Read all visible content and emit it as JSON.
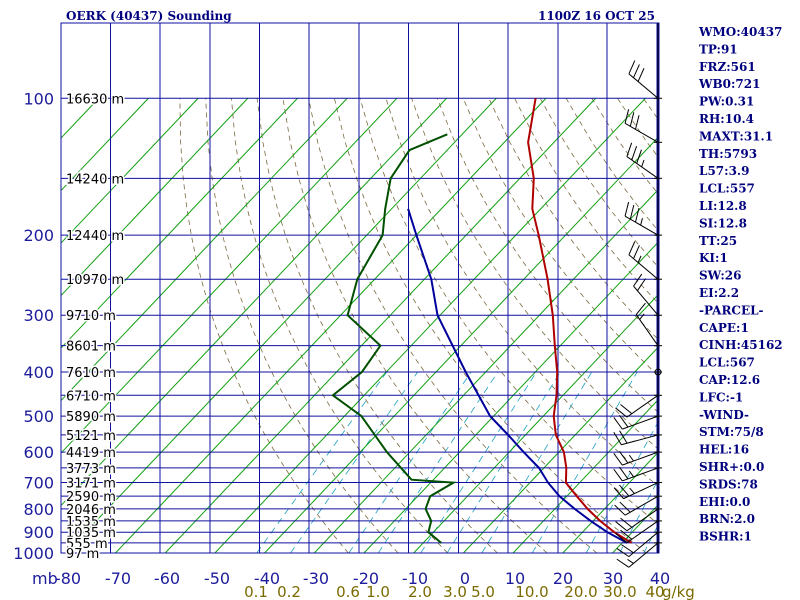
{
  "header": {
    "station": "OERK (40437) Sounding",
    "time": "1100Z 16 OCT 25"
  },
  "axes": {
    "unit_mb": "mb",
    "mixing_ratio_unit": "g/kg"
  },
  "chart_data": {
    "type": "line",
    "title": "OERK (40437) Sounding",
    "pressure_levels": [
      100,
      200,
      300,
      400,
      500,
      600,
      700,
      800,
      900,
      1000
    ],
    "temperature_ticks": [
      -80,
      -70,
      -60,
      -50,
      -40,
      -30,
      -20,
      -10,
      0,
      10,
      20,
      30,
      40
    ],
    "temperature_tick_labels": [
      "-80",
      "-70",
      "-60",
      "-50",
      "-40",
      "-30",
      "-20",
      "-10",
      "0",
      "10",
      "20",
      "30",
      "40"
    ],
    "height_labels": [
      {
        "p": 100,
        "text": "16630 m"
      },
      {
        "p": 150,
        "text": "14240 m"
      },
      {
        "p": 200,
        "text": "12440 m"
      },
      {
        "p": 250,
        "text": "10970 m"
      },
      {
        "p": 300,
        "text": "9710 m"
      },
      {
        "p": 350,
        "text": "8601 m"
      },
      {
        "p": 400,
        "text": "7610 m"
      },
      {
        "p": 450,
        "text": "6710 m"
      },
      {
        "p": 500,
        "text": "5890 m"
      },
      {
        "p": 550,
        "text": "5121 m"
      },
      {
        "p": 600,
        "text": "4419 m"
      },
      {
        "p": 650,
        "text": "3773 m"
      },
      {
        "p": 700,
        "text": "3171 m"
      },
      {
        "p": 750,
        "text": "2590 m"
      },
      {
        "p": 800,
        "text": "2046 m"
      },
      {
        "p": 850,
        "text": "1535 m"
      },
      {
        "p": 900,
        "text": "1035 m"
      },
      {
        "p": 950,
        "text": "555 m"
      },
      {
        "p": 1000,
        "text": "97 m"
      }
    ],
    "mixing_ratio_labels": [
      "0.1",
      "0.2",
      "0.6",
      "1.0",
      "2.0",
      "3.0",
      "5.0",
      "10.0",
      "20.0",
      "30.0",
      "40"
    ],
    "series": [
      {
        "key": "temperature",
        "color": "#b00000",
        "points": [
          {
            "p": 950,
            "t": 31.9
          },
          {
            "p": 900,
            "t": 26.4
          },
          {
            "p": 850,
            "t": 21.4
          },
          {
            "p": 800,
            "t": 16.6
          },
          {
            "p": 750,
            "t": 12.0
          },
          {
            "p": 700,
            "t": 7.2
          },
          {
            "p": 650,
            "t": 4.5
          },
          {
            "p": 600,
            "t": 1.0
          },
          {
            "p": 550,
            "t": -3.9
          },
          {
            "p": 500,
            "t": -7.9
          },
          {
            "p": 450,
            "t": -11.3
          },
          {
            "p": 400,
            "t": -15.6
          },
          {
            "p": 350,
            "t": -21.1
          },
          {
            "p": 300,
            "t": -27.3
          },
          {
            "p": 250,
            "t": -35.2
          },
          {
            "p": 200,
            "t": -45.4
          },
          {
            "p": 175,
            "t": -51.7
          },
          {
            "p": 150,
            "t": -57.2
          },
          {
            "p": 125,
            "t": -65.2
          },
          {
            "p": 100,
            "t": -72.1
          }
        ]
      },
      {
        "key": "dewpoint",
        "color": "#005000",
        "points": [
          {
            "p": 950,
            "t": -6.4
          },
          {
            "p": 900,
            "t": -11.0
          },
          {
            "p": 850,
            "t": -12.6
          },
          {
            "p": 800,
            "t": -16.0
          },
          {
            "p": 750,
            "t": -17.5
          },
          {
            "p": 700,
            "t": -15.4
          },
          {
            "p": 690,
            "t": -24.4
          },
          {
            "p": 600,
            "t": -34.6
          },
          {
            "p": 500,
            "t": -46.6
          },
          {
            "p": 450,
            "t": -56.3
          },
          {
            "p": 400,
            "t": -54.9
          },
          {
            "p": 350,
            "t": -56.2
          },
          {
            "p": 300,
            "t": -68.6
          },
          {
            "p": 250,
            "t": -73.5
          },
          {
            "p": 200,
            "t": -76.8
          },
          {
            "p": 175,
            "t": -81.3
          },
          {
            "p": 150,
            "t": -86.0
          },
          {
            "p": 130,
            "t": -87.6
          },
          {
            "p": 120,
            "t": -83.0
          }
        ]
      },
      {
        "key": "parcel",
        "color": "#00009c",
        "points": [
          {
            "p": 950,
            "t": 31.0
          },
          {
            "p": 900,
            "t": 25.0
          },
          {
            "p": 850,
            "t": 19.5
          },
          {
            "p": 800,
            "t": 14.0
          },
          {
            "p": 750,
            "t": 8.5
          },
          {
            "p": 700,
            "t": 3.6
          },
          {
            "p": 650,
            "t": -1.0
          },
          {
            "p": 600,
            "t": -7.1
          },
          {
            "p": 550,
            "t": -13.5
          },
          {
            "p": 500,
            "t": -20.7
          },
          {
            "p": 400,
            "t": -34.0
          },
          {
            "p": 300,
            "t": -50.5
          },
          {
            "p": 250,
            "t": -58.6
          },
          {
            "p": 200,
            "t": -70.0
          },
          {
            "p": 175,
            "t": -76.7
          }
        ]
      }
    ],
    "winds": [
      {
        "p": 950,
        "dir": 230,
        "kt": 15
      },
      {
        "p": 900,
        "dir": 230,
        "kt": 20
      },
      {
        "p": 850,
        "dir": 235,
        "kt": 20
      },
      {
        "p": 800,
        "dir": 235,
        "kt": 20
      },
      {
        "p": 750,
        "dir": 240,
        "kt": 20
      },
      {
        "p": 700,
        "dir": 245,
        "kt": 25
      },
      {
        "p": 650,
        "dir": 250,
        "kt": 25
      },
      {
        "p": 600,
        "dir": 250,
        "kt": 25
      },
      {
        "p": 550,
        "dir": 255,
        "kt": 20
      },
      {
        "p": 500,
        "dir": 250,
        "kt": 20
      },
      {
        "p": 450,
        "dir": 235,
        "kt": 20
      },
      {
        "p": 400,
        "dir": 0,
        "kt": 0
      },
      {
        "p": 350,
        "dir": 325,
        "kt": 15
      },
      {
        "p": 300,
        "dir": 320,
        "kt": 20
      },
      {
        "p": 250,
        "dir": 310,
        "kt": 25
      },
      {
        "p": 200,
        "dir": 300,
        "kt": 35
      },
      {
        "p": 150,
        "dir": 305,
        "kt": 35
      },
      {
        "p": 125,
        "dir": 300,
        "kt": 30
      },
      {
        "p": 100,
        "dir": 310,
        "kt": 30
      }
    ]
  },
  "stats": [
    "WMO:40437",
    "TP:91",
    "FRZ:561",
    "WB0:721",
    "PW:0.31",
    "RH:10.4",
    "MAXT:31.1",
    "TH:5793",
    "L57:3.9",
    "LCL:557",
    "LI:12.8",
    "SI:12.8",
    "TT:25",
    "KI:1",
    "SW:26",
    "EI:2.2",
    "-PARCEL-",
    "CAPE:1",
    "CINH:45162",
    "LCL:567",
    "CAP:12.6",
    "LFC:-1",
    "-WIND-",
    "STM:75/8",
    "HEL:16",
    "SHR+:0.0",
    "SRDS:78",
    "EHI:0.0",
    "BRN:2.0",
    "BSHR:1"
  ]
}
